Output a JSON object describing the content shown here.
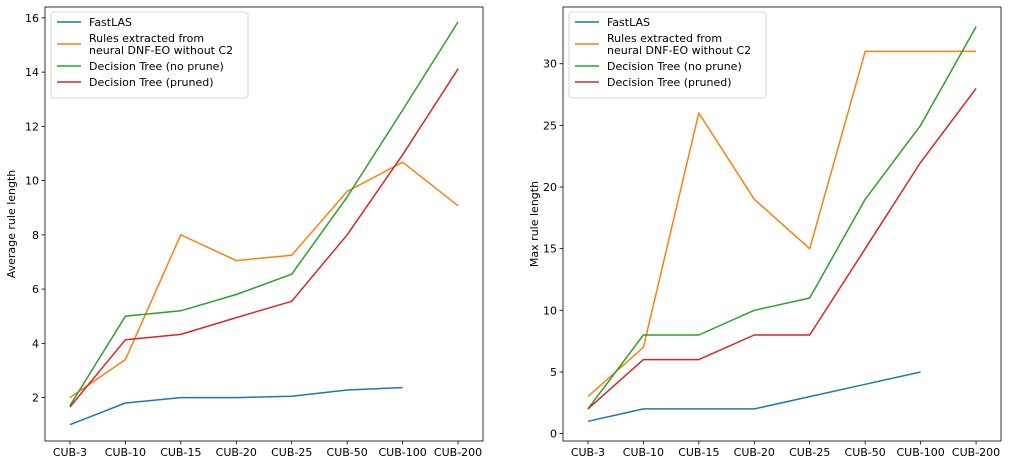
{
  "chart_data": [
    {
      "type": "line",
      "categories": [
        "CUB-3",
        "CUB-10",
        "CUB-15",
        "CUB-20",
        "CUB-25",
        "CUB-50",
        "CUB-100",
        "CUB-200"
      ],
      "xlabel": "",
      "ylabel": "Average rule length",
      "ylim": [
        0.4,
        16.4
      ],
      "yticks": [
        2,
        4,
        6,
        8,
        10,
        12,
        14,
        16
      ],
      "grid": false,
      "legend_position": "top-left",
      "series": [
        {
          "name": "FastLAS",
          "color": "#1f77b4",
          "values": [
            1.0,
            1.8,
            2.0,
            2.0,
            2.05,
            2.28,
            2.37,
            null
          ]
        },
        {
          "name": "Rules extracted from neural DNF-EO without C2",
          "color": "#ff7f0e",
          "values": [
            2.0,
            3.4,
            8.0,
            7.05,
            7.25,
            9.6,
            10.68,
            9.07
          ]
        },
        {
          "name": "Decision Tree (no prune)",
          "color": "#2ca02c",
          "values": [
            1.7,
            5.0,
            5.2,
            5.8,
            6.55,
            9.4,
            12.6,
            15.85
          ]
        },
        {
          "name": "Decision Tree (pruned)",
          "color": "#d62728",
          "values": [
            1.65,
            4.13,
            4.33,
            4.95,
            5.55,
            8.0,
            10.95,
            14.12
          ]
        }
      ]
    },
    {
      "type": "line",
      "categories": [
        "CUB-3",
        "CUB-10",
        "CUB-15",
        "CUB-20",
        "CUB-25",
        "CUB-50",
        "CUB-100",
        "CUB-200"
      ],
      "xlabel": "",
      "ylabel": "Max rule length",
      "ylim": [
        -0.6,
        34.6
      ],
      "yticks": [
        0,
        5,
        10,
        15,
        20,
        25,
        30
      ],
      "grid": false,
      "legend_position": "top-left",
      "series": [
        {
          "name": "FastLAS",
          "color": "#1f77b4",
          "values": [
            1,
            2,
            2,
            2,
            3,
            4,
            5,
            null
          ]
        },
        {
          "name": "Rules extracted from neural DNF-EO without C2",
          "color": "#ff7f0e",
          "values": [
            3,
            7,
            26,
            19,
            15,
            31,
            31,
            31
          ]
        },
        {
          "name": "Decision Tree (no prune)",
          "color": "#2ca02c",
          "values": [
            2,
            8,
            8,
            10,
            11,
            19,
            25,
            33
          ]
        },
        {
          "name": "Decision Tree (pruned)",
          "color": "#d62728",
          "values": [
            2,
            6,
            6,
            8,
            8,
            15,
            22,
            28
          ]
        }
      ]
    }
  ]
}
